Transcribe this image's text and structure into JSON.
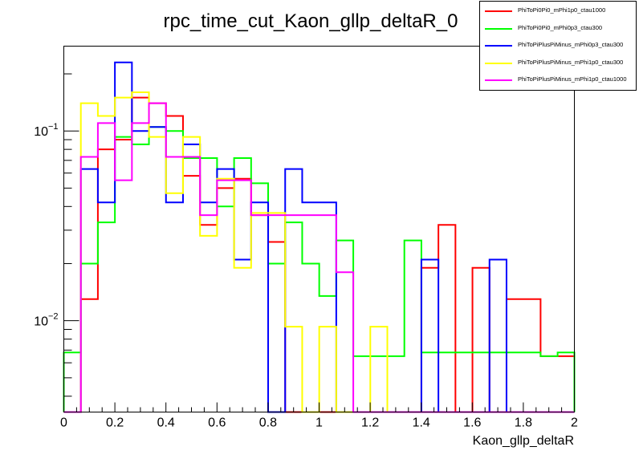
{
  "chart_data": {
    "type": "histogram",
    "title": "rpc_time_cut_Kaon_gllp_deltaR_0",
    "xlabel": "Kaon_gllp_deltaR",
    "ylabel": "",
    "xlim": [
      0,
      2
    ],
    "ylim": [
      0.0033,
      0.28
    ],
    "yscale": "log",
    "bin_width": 0.0667,
    "x_ticks": [
      "0",
      "0.2",
      "0.4",
      "0.6",
      "0.8",
      "1",
      "1.2",
      "1.4",
      "1.6",
      "1.8",
      "2"
    ],
    "x_tick_values": [
      0,
      0.2,
      0.4,
      0.6,
      0.8,
      1.0,
      1.2,
      1.4,
      1.6,
      1.8,
      2.0
    ],
    "y_ticks": [
      "10",
      "10"
    ],
    "y_tick_exponents": [
      "−1",
      "−2"
    ],
    "y_tick_values": [
      0.1,
      0.01
    ],
    "legend_position": "top-right",
    "grid": false,
    "series": [
      {
        "name": "PhiToPi0Pi0_mPhi1p0_ctau1000",
        "color": "#ff0000",
        "values": [
          0,
          0.013,
          0.08,
          0.09,
          0.15,
          0.14,
          0.12,
          0.058,
          0.032,
          0.05,
          0.056,
          0.036,
          0.026,
          0.0,
          0.0,
          0.0,
          0.0,
          0.0,
          0.0,
          0.0,
          0.0,
          0.019,
          0.032,
          0.0,
          0.019,
          0.0,
          0.013,
          0.013,
          0.0065,
          0.0065
        ]
      },
      {
        "name": "PhiToPi0Pi0_mPhi0p3_ctau300",
        "color": "#00ff00",
        "values": [
          0.0068,
          0.02,
          0.033,
          0.093,
          0.085,
          0.105,
          0.1,
          0.072,
          0.072,
          0.04,
          0.072,
          0.053,
          0.02,
          0.033,
          0.02,
          0.0135,
          0.0265,
          0.0065,
          0.0065,
          0.0065,
          0.0265,
          0.0068,
          0.0068,
          0.0068,
          0.0068,
          0.0068,
          0.0068,
          0.0068,
          0.0065,
          0.0068
        ]
      },
      {
        "name": "PhiToPiPlusPiMinus_mPhi0p3_ctau300",
        "color": "#0000ff",
        "values": [
          0,
          0.063,
          0.042,
          0.23,
          0.1,
          0.105,
          0.042,
          0.085,
          0.042,
          0.063,
          0.021,
          0.042,
          0.0,
          0.063,
          0.042,
          0.042,
          0.0,
          0.0,
          0.0,
          0.0,
          0.0,
          0.021,
          0.0,
          0.0,
          0.0,
          0.021,
          0.0,
          0.0,
          0.0,
          0.0
        ]
      },
      {
        "name": "PhiToPiPlusPiMinus_mPhi1p0_ctau300",
        "color": "#ffff00",
        "values": [
          0,
          0.14,
          0.12,
          0.15,
          0.16,
          0.093,
          0.047,
          0.093,
          0.028,
          0.056,
          0.019,
          0.037,
          0.037,
          0.0093,
          0.0,
          0.0093,
          0.0,
          0.0,
          0.0093,
          0.0,
          0.0,
          0.0,
          0.0,
          0.0,
          0.0,
          0.0,
          0.0,
          0.0,
          0.0,
          0.0
        ]
      },
      {
        "name": "PhiToPiPlusPiMinus_mPhi1p0_ctau1000",
        "color": "#ff00ff",
        "values": [
          0,
          0.073,
          0.11,
          0.055,
          0.11,
          0.14,
          0.073,
          0.073,
          0.036,
          0.055,
          0.055,
          0.036,
          0.036,
          0.036,
          0.036,
          0.036,
          0.018,
          0.0,
          0.0,
          0.0,
          0.0,
          0.0,
          0.0,
          0.0,
          0.0,
          0.0,
          0.0,
          0.0,
          0.0,
          0.0
        ]
      }
    ]
  }
}
